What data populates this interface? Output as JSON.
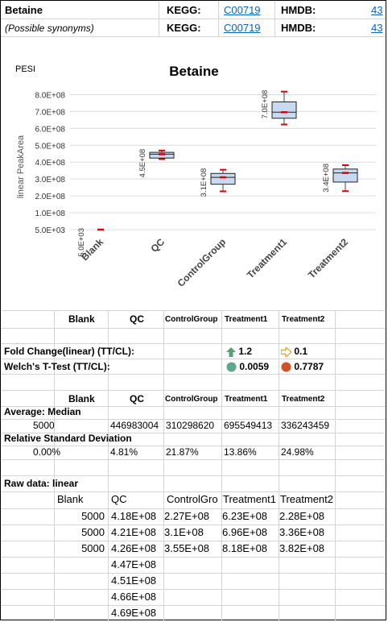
{
  "header": {
    "compound": "Betaine",
    "synonyms": "(Possible synonyms)",
    "kegg_label": "KEGG:",
    "kegg_id": "C00719",
    "hmdb_label": "HMDB:",
    "hmdb_id": "43"
  },
  "chart_data": {
    "type": "box",
    "title": "Betaine",
    "corner_label": "PESI",
    "ylabel": "linear PeakArea",
    "yticks": [
      "5.0E+03",
      "1.0E+08",
      "2.0E+08",
      "3.0E+08",
      "4.0E+08",
      "5.0E+08",
      "6.0E+08",
      "7.0E+08",
      "8.0E+08"
    ],
    "ylim": [
      0,
      850000000
    ],
    "categories": [
      "Blank",
      "QC",
      "ControlGroup",
      "Treatment1",
      "Treatment2"
    ],
    "boxes": [
      {
        "name": "Blank",
        "min": 5000,
        "q1": 5000,
        "median": 5000,
        "q3": 5000,
        "max": 5000,
        "mean_label": "5.0E+03"
      },
      {
        "name": "QC",
        "min": 418000000,
        "q1": 424000000,
        "median": 447000000,
        "q3": 458000000,
        "max": 469000000,
        "mean_label": "4.5E+08"
      },
      {
        "name": "ControlGroup",
        "min": 227000000,
        "q1": 269000000,
        "median": 310000000,
        "q3": 333000000,
        "max": 355000000,
        "mean_label": "3.1E+08"
      },
      {
        "name": "Treatment1",
        "min": 623000000,
        "q1": 660000000,
        "median": 696000000,
        "q3": 757000000,
        "max": 818000000,
        "mean_label": "7.0E+08"
      },
      {
        "name": "Treatment2",
        "min": 228000000,
        "q1": 282000000,
        "median": 336000000,
        "q3": 359000000,
        "max": 382000000,
        "mean_label": "3.4E+08"
      }
    ]
  },
  "groups_header": [
    "Blank",
    "QC",
    "ControlGroup",
    "Treatment1",
    "Treatment2"
  ],
  "stats": {
    "fold_label": "Fold Change(linear) (TT/CL):",
    "fold_t1": "1.2",
    "fold_t2": "0.1",
    "welch_label": "Welch's T-Test (TT/CL):",
    "welch_t1": "0.0059",
    "welch_t2": "0.7787",
    "colors": {
      "up_arrow": "#5a9e7a",
      "right_arrow": "#e8a832",
      "good": "#5fa88c",
      "bad": "#d0522a"
    }
  },
  "average": {
    "label": "Average: Median",
    "values": [
      "5000",
      "446983004",
      "310298620",
      "695549413",
      "336243459"
    ]
  },
  "rsd": {
    "label": "Relative Standard Deviation",
    "values": [
      "0.00%",
      "4.81%",
      "21.87%",
      "13.86%",
      "24.98%"
    ]
  },
  "raw": {
    "label": "Raw data: linear",
    "headers": [
      "Blank",
      "QC",
      "ControlGro",
      "Treatment1",
      "Treatment2"
    ],
    "rows": [
      [
        "5000",
        "4.18E+08",
        "2.27E+08",
        "6.23E+08",
        "2.28E+08"
      ],
      [
        "5000",
        "4.21E+08",
        "3.1E+08",
        "6.96E+08",
        "3.36E+08"
      ],
      [
        "5000",
        "4.26E+08",
        "3.55E+08",
        "8.18E+08",
        "3.82E+08"
      ],
      [
        "",
        "4.47E+08",
        "",
        "",
        ""
      ],
      [
        "",
        "4.51E+08",
        "",
        "",
        ""
      ],
      [
        "",
        "4.66E+08",
        "",
        "",
        ""
      ],
      [
        "",
        "4.69E+08",
        "",
        "",
        ""
      ]
    ]
  }
}
